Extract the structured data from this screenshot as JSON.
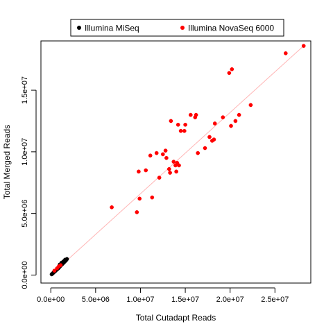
{
  "chart_data": {
    "type": "scatter",
    "xlabel": "Total Cutadapt Reads",
    "ylabel": "Total Merged Reads",
    "xlim": [
      -1100000,
      29000000
    ],
    "ylim": [
      -650000,
      19000000
    ],
    "x_ticks": [
      {
        "value": 0,
        "label": "0.0e+00"
      },
      {
        "value": 5000000,
        "label": "5.0e+06"
      },
      {
        "value": 10000000,
        "label": "1.0e+07"
      },
      {
        "value": 15000000,
        "label": "1.5e+07"
      },
      {
        "value": 20000000,
        "label": "2.0e+07"
      },
      {
        "value": 25000000,
        "label": "2.5e+07"
      }
    ],
    "y_ticks": [
      {
        "value": 0,
        "label": "0.0e+00"
      },
      {
        "value": 5000000,
        "label": "5.0e+06"
      },
      {
        "value": 10000000,
        "label": "1.0e+07"
      },
      {
        "value": 15000000,
        "label": "1.5e+07"
      }
    ],
    "grid": false,
    "legend_position": "top",
    "fit_line": {
      "color": "#ffb6b6",
      "from": [
        0,
        0
      ],
      "to": [
        28200000,
        18600000
      ]
    },
    "series": [
      {
        "name": "Illumina MiSeq",
        "color": "#000000",
        "points": [
          [
            100000,
            60000
          ],
          [
            150000,
            100000
          ],
          [
            200000,
            120000
          ],
          [
            250000,
            160000
          ],
          [
            300000,
            200000
          ],
          [
            350000,
            230000
          ],
          [
            400000,
            270000
          ],
          [
            450000,
            300000
          ],
          [
            500000,
            330000
          ],
          [
            600000,
            400000
          ],
          [
            700000,
            460000
          ],
          [
            800000,
            520000
          ],
          [
            850000,
            560000
          ],
          [
            900000,
            600000
          ],
          [
            950000,
            640000
          ],
          [
            1000000,
            680000
          ],
          [
            1050000,
            720000
          ],
          [
            1100000,
            760000
          ],
          [
            1150000,
            800000
          ],
          [
            1200000,
            840000
          ],
          [
            1250000,
            870000
          ],
          [
            1300000,
            900000
          ],
          [
            1350000,
            940000
          ],
          [
            1400000,
            980000
          ],
          [
            1450000,
            1010000
          ],
          [
            1500000,
            1050000
          ],
          [
            1550000,
            1090000
          ],
          [
            1600000,
            1130000
          ],
          [
            1650000,
            1160000
          ],
          [
            1700000,
            1200000
          ],
          [
            1750000,
            1240000
          ],
          [
            1000000,
            850000
          ],
          [
            1200000,
            1000000
          ],
          [
            1400000,
            1100000
          ],
          [
            1600000,
            1250000
          ],
          [
            1800000,
            1300000
          ]
        ]
      },
      {
        "name": "Illumina NovaSeq 6000",
        "color": "#ff0000",
        "points": [
          [
            400000,
            350000
          ],
          [
            700000,
            550000
          ],
          [
            900000,
            700000
          ],
          [
            1100000,
            800000
          ],
          [
            6800000,
            5500000
          ],
          [
            9600000,
            5100000
          ],
          [
            9900000,
            6200000
          ],
          [
            9800000,
            8400000
          ],
          [
            10600000,
            8500000
          ],
          [
            11300000,
            6300000
          ],
          [
            11100000,
            9700000
          ],
          [
            11800000,
            9900000
          ],
          [
            12100000,
            7900000
          ],
          [
            12500000,
            9800000
          ],
          [
            12800000,
            10100000
          ],
          [
            12900000,
            9500000
          ],
          [
            13200000,
            8600000
          ],
          [
            13300000,
            8300000
          ],
          [
            13400000,
            12500000
          ],
          [
            13700000,
            9200000
          ],
          [
            13900000,
            8900000
          ],
          [
            14000000,
            8400000
          ],
          [
            14100000,
            9100000
          ],
          [
            14200000,
            12200000
          ],
          [
            14300000,
            8900000
          ],
          [
            14500000,
            11700000
          ],
          [
            14900000,
            11700000
          ],
          [
            15000000,
            12200000
          ],
          [
            15600000,
            13000000
          ],
          [
            16100000,
            12800000
          ],
          [
            16200000,
            13000000
          ],
          [
            16400000,
            9900000
          ],
          [
            17200000,
            10300000
          ],
          [
            17700000,
            11200000
          ],
          [
            18000000,
            10900000
          ],
          [
            18200000,
            11000000
          ],
          [
            18300000,
            12300000
          ],
          [
            19200000,
            12800000
          ],
          [
            19900000,
            16400000
          ],
          [
            20200000,
            16700000
          ],
          [
            20100000,
            12100000
          ],
          [
            20600000,
            12500000
          ],
          [
            21000000,
            13000000
          ],
          [
            22300000,
            13800000
          ],
          [
            26200000,
            18000000
          ],
          [
            28200000,
            18600000
          ]
        ]
      }
    ]
  }
}
